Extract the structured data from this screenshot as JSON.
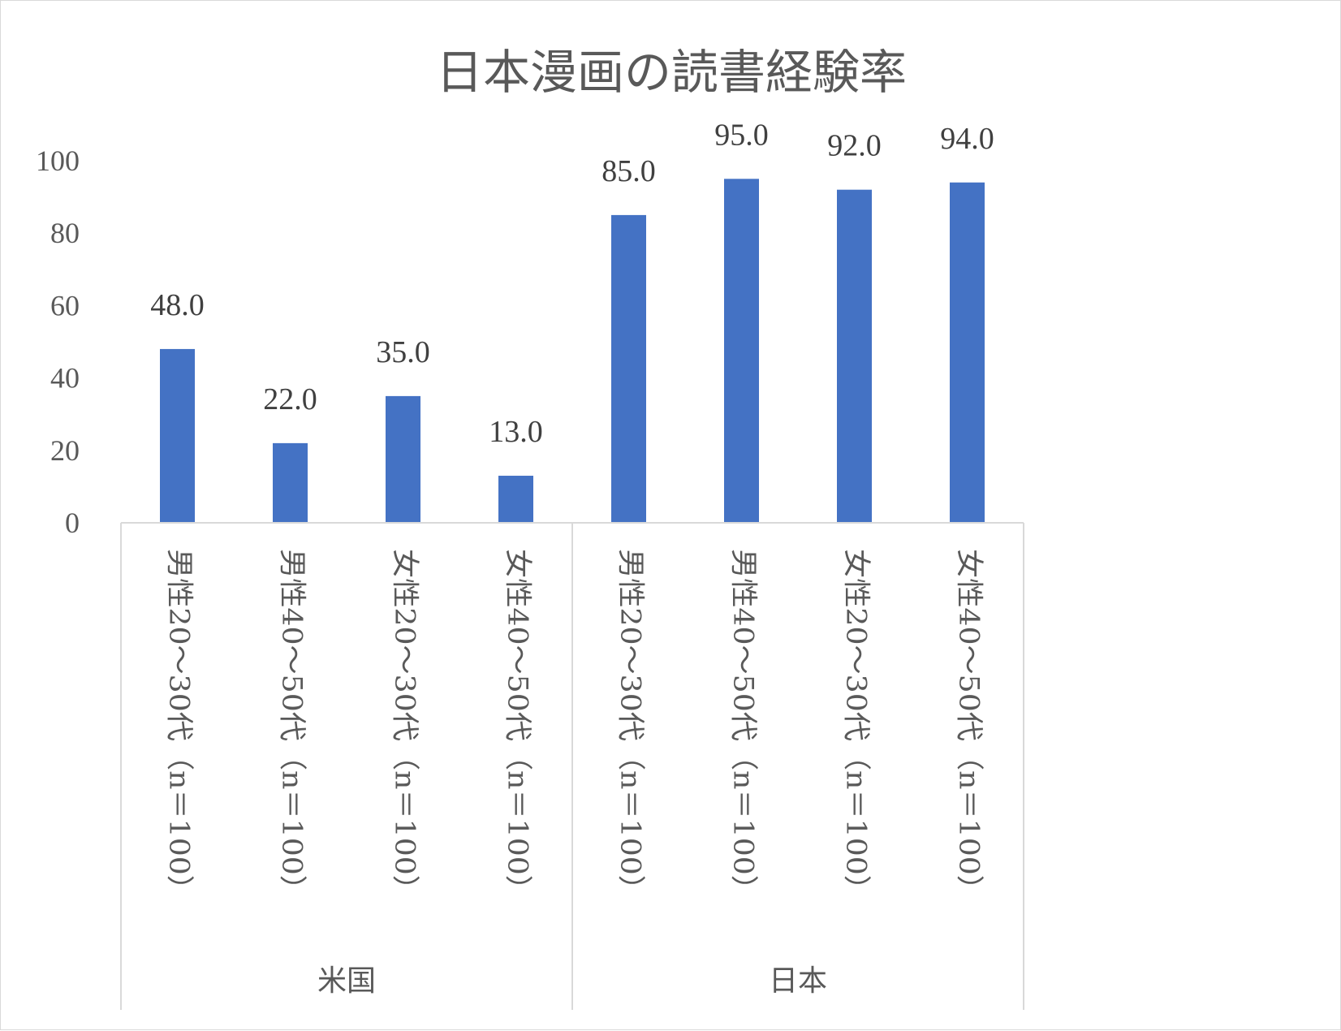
{
  "colors": {
    "bar": "#4472c4",
    "axis": "#d9d9d9",
    "text": "#595959",
    "label": "#404040"
  },
  "chart_data": {
    "type": "bar",
    "title": "日本漫画の読書経験率",
    "categories": [
      "男性20～30代（n＝100）",
      "男性40～50代（n＝100）",
      "女性20～30代（n＝100）",
      "女性40～50代（n＝100）",
      "男性20～30代（n＝100）",
      "男性40～50代（n＝100）",
      "女性20～30代（n＝100）",
      "女性40～50代（n＝100）"
    ],
    "groups": [
      {
        "label": "米国",
        "count": 4
      },
      {
        "label": "日本",
        "count": 4
      }
    ],
    "values": [
      48,
      22,
      35,
      13,
      85,
      95,
      92,
      94
    ],
    "data_labels": [
      "48.0",
      "22.0",
      "35.0",
      "13.0",
      "85.0",
      "95.0",
      "92.0",
      "94.0"
    ],
    "yticks": [
      "0",
      "20",
      "40",
      "60",
      "80",
      "100"
    ],
    "ylim": [
      0,
      100
    ],
    "grid": false,
    "legend": "none"
  }
}
